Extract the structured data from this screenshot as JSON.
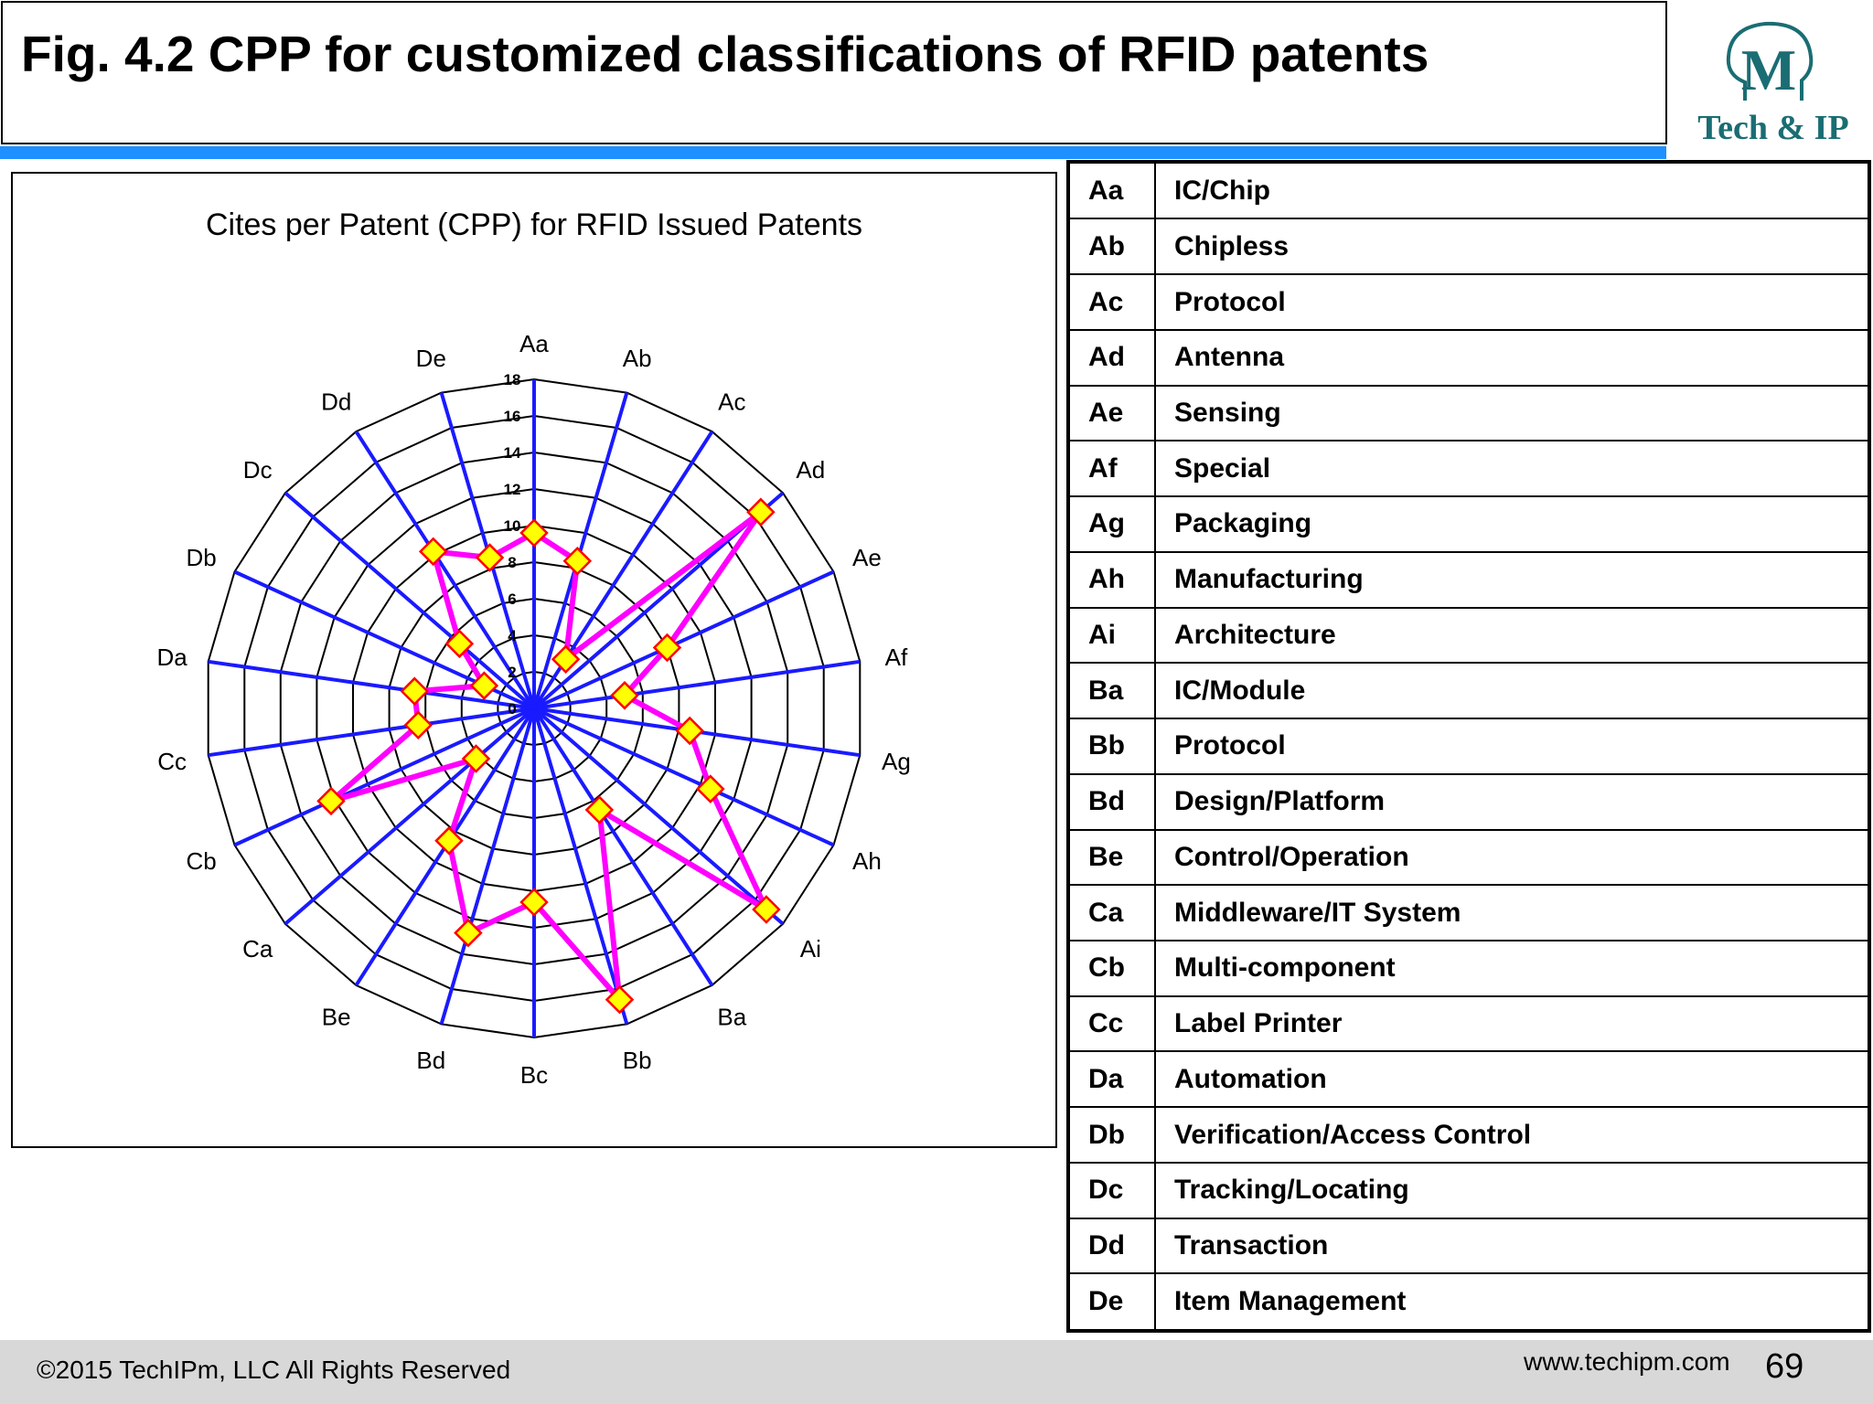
{
  "slide": {
    "title": "Fig. 4.2 CPP for customized classifications of RFID patents",
    "logo_text": "Tech & IP",
    "logo_letter": "M",
    "copyright": "©2015 TechIPm, LLC All Rights Reserved",
    "website": "www.techipm.com",
    "page_number": "69"
  },
  "legend": [
    {
      "code": "Aa",
      "label": "IC/Chip"
    },
    {
      "code": "Ab",
      "label": "Chipless"
    },
    {
      "code": "Ac",
      "label": "Protocol"
    },
    {
      "code": "Ad",
      "label": "Antenna"
    },
    {
      "code": "Ae",
      "label": "Sensing"
    },
    {
      "code": "Af",
      "label": "Special"
    },
    {
      "code": "Ag",
      "label": "Packaging"
    },
    {
      "code": "Ah",
      "label": "Manufacturing"
    },
    {
      "code": "Ai",
      "label": "Architecture"
    },
    {
      "code": "Ba",
      "label": "IC/Module"
    },
    {
      "code": "Bb",
      "label": "Protocol"
    },
    {
      "code": "Bd",
      "label": "Design/Platform"
    },
    {
      "code": "Be",
      "label": "Control/Operation"
    },
    {
      "code": "Ca",
      "label": "Middleware/IT System"
    },
    {
      "code": "Cb",
      "label": "Multi-component"
    },
    {
      "code": "Cc",
      "label": "Label Printer"
    },
    {
      "code": "Da",
      "label": "Automation"
    },
    {
      "code": "Db",
      "label": "Verification/Access Control"
    },
    {
      "code": "Dc",
      "label": "Tracking/Locating"
    },
    {
      "code": "Dd",
      "label": "Transaction"
    },
    {
      "code": "De",
      "label": "Item Management"
    }
  ],
  "chart_data": {
    "type": "radar",
    "title": "Cites per Patent (CPP) for RFID Issued Patents",
    "categories": [
      "Aa",
      "Ab",
      "Ac",
      "Ad",
      "Ae",
      "Af",
      "Ag",
      "Ah",
      "Ai",
      "Ba",
      "Bb",
      "Bc",
      "Bd",
      "Be",
      "Ca",
      "Cb",
      "Cc",
      "Da",
      "Db",
      "Dc",
      "Dd",
      "De"
    ],
    "series": [
      {
        "values": [
          9.6,
          8.4,
          3.2,
          16.4,
          8.0,
          5.0,
          8.6,
          10.6,
          16.8,
          6.6,
          16.6,
          10.6,
          12.8,
          8.6,
          4.2,
          12.2,
          6.4,
          6.6,
          3.0,
          5.4,
          10.2,
          8.6
        ]
      }
    ],
    "rmin": 0,
    "rmax": 18,
    "ticks": [
      "0",
      "2",
      "4",
      "6",
      "8",
      "10",
      "12",
      "14",
      "16",
      "18"
    ],
    "grid": true,
    "legend": "none",
    "colors": {
      "spokes": "#1a1aff",
      "series": "#ff00ff",
      "marker_fill": "#ffff00",
      "marker_stroke": "#ff0000",
      "grid": "#000000"
    }
  }
}
